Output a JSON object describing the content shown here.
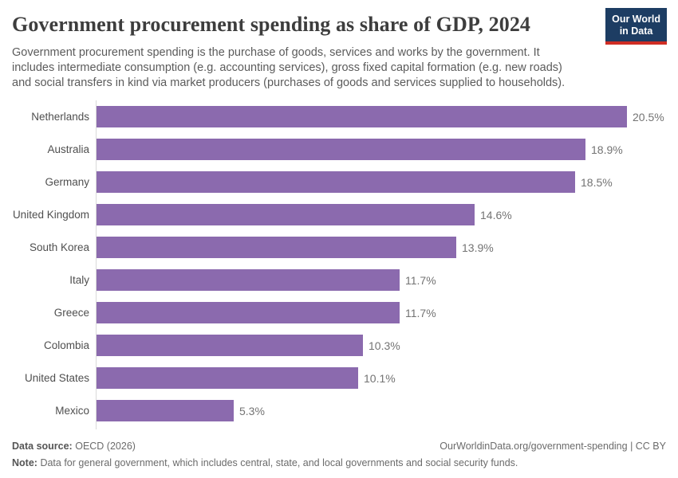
{
  "header": {
    "title": "Government procurement spending as share of GDP, 2024",
    "subtitle": "Government procurement spending is the purchase of goods, services and works by the government. It includes intermediate consumption (e.g. accounting services), gross fixed capital formation (e.g. new roads) and social transfers in kind via market producers (purchases of goods and services supplied to households).",
    "logo": {
      "line1": "Our World",
      "line2": "in Data"
    }
  },
  "chart_data": {
    "type": "bar",
    "orientation": "horizontal",
    "title": "Government procurement spending as share of GDP, 2024",
    "categories": [
      "Netherlands",
      "Australia",
      "Germany",
      "United Kingdom",
      "South Korea",
      "Italy",
      "Greece",
      "Colombia",
      "United States",
      "Mexico"
    ],
    "values": [
      20.5,
      18.9,
      18.5,
      14.6,
      13.9,
      11.7,
      11.7,
      10.3,
      10.1,
      5.3
    ],
    "value_labels": [
      "20.5%",
      "18.9%",
      "18.5%",
      "14.6%",
      "13.9%",
      "11.7%",
      "11.7%",
      "10.3%",
      "10.1%",
      "5.3%"
    ],
    "unit": "%",
    "xlim": [
      0,
      20.5
    ],
    "grid": false,
    "legend": false,
    "bar_color": "#8b6aae"
  },
  "footer": {
    "data_source_label": "Data source:",
    "data_source_value": "OECD (2026)",
    "attribution": "OurWorldinData.org/government-spending | CC BY",
    "note_label": "Note:",
    "note_value": "Data for general government, which includes central, state, and local governments and social security funds."
  }
}
